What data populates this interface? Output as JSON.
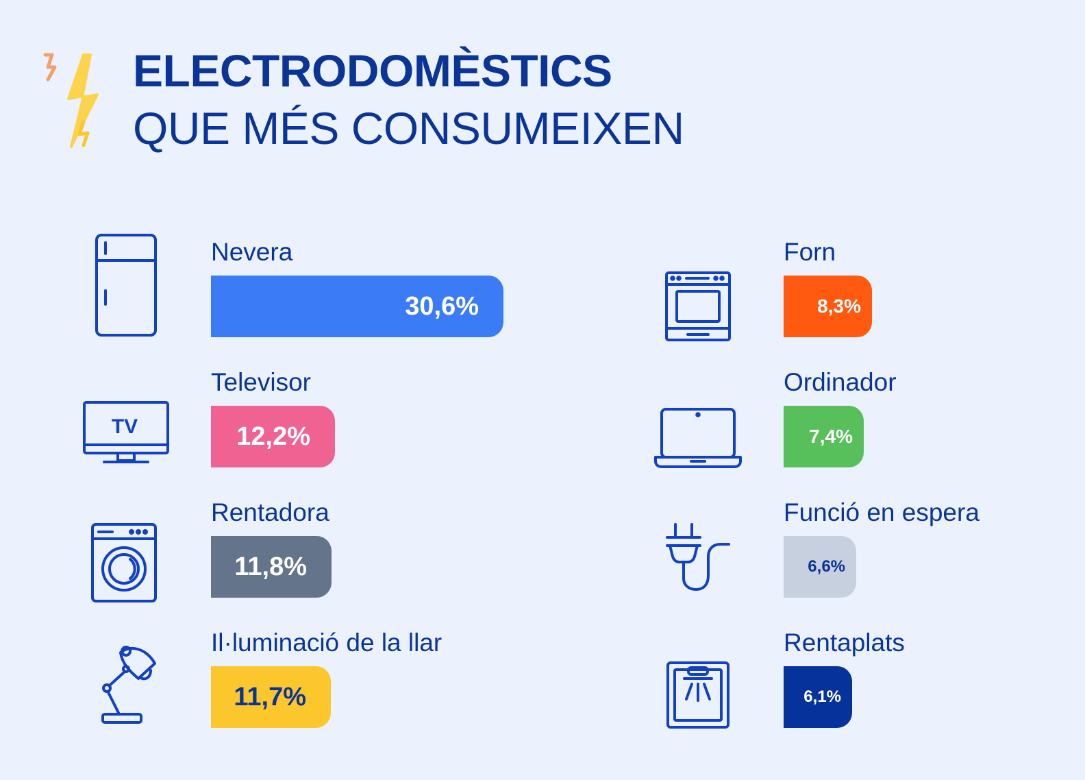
{
  "title": {
    "line1": "ELECTRODOMÈSTICS",
    "line2": "QUE MÉS CONSUMEIXEN"
  },
  "chart_data": {
    "type": "bar",
    "title": "ELECTRODOMÈSTICS QUE MÉS CONSUMEIXEN",
    "unit": "%",
    "categories": [
      "Nevera",
      "Televisor",
      "Rentadora",
      "Il·luminació de la llar",
      "Forn",
      "Ordinador",
      "Funció en espera",
      "Rentaplats"
    ],
    "values": [
      30.6,
      12.2,
      11.8,
      11.7,
      8.3,
      7.4,
      6.6,
      6.1
    ],
    "items": [
      {
        "label": "Nevera",
        "value": 30.6,
        "text": "30,6%",
        "color": "#3b7cf6",
        "text_color": "#ffffff",
        "icon": "fridge-icon"
      },
      {
        "label": "Televisor",
        "value": 12.2,
        "text": "12,2%",
        "color": "#f06292",
        "text_color": "#ffffff",
        "icon": "tv-icon"
      },
      {
        "label": "Rentadora",
        "value": 11.8,
        "text": "11,8%",
        "color": "#64748b",
        "text_color": "#ffffff",
        "icon": "washing-machine-icon"
      },
      {
        "label": "Il·luminació de la llar",
        "value": 11.7,
        "text": "11,7%",
        "color": "#fcc72c",
        "text_color": "#0a3597",
        "icon": "desk-lamp-icon"
      },
      {
        "label": "Forn",
        "value": 8.3,
        "text": "8,3%",
        "color": "#ff5a0f",
        "text_color": "#ffffff",
        "icon": "oven-icon"
      },
      {
        "label": "Ordinador",
        "value": 7.4,
        "text": "7,4%",
        "color": "#57c05a",
        "text_color": "#ffffff",
        "icon": "laptop-icon"
      },
      {
        "label": "Funció en espera",
        "value": 6.6,
        "text": "6,6%",
        "color": "#c6d0de",
        "text_color": "#0a3597",
        "icon": "plug-icon"
      },
      {
        "label": "Rentaplats",
        "value": 6.1,
        "text": "6,1%",
        "color": "#06339b",
        "text_color": "#ffffff",
        "icon": "dishwasher-icon"
      }
    ]
  },
  "colors": {
    "background": "#ecf2fd",
    "text": "#0a3597",
    "icon_stroke": "#1241c2",
    "bolt_yellow": "#fcd34d",
    "bolt_orange": "#f59e6b"
  },
  "icons": {
    "logo": "lightning-bolt-icon"
  }
}
